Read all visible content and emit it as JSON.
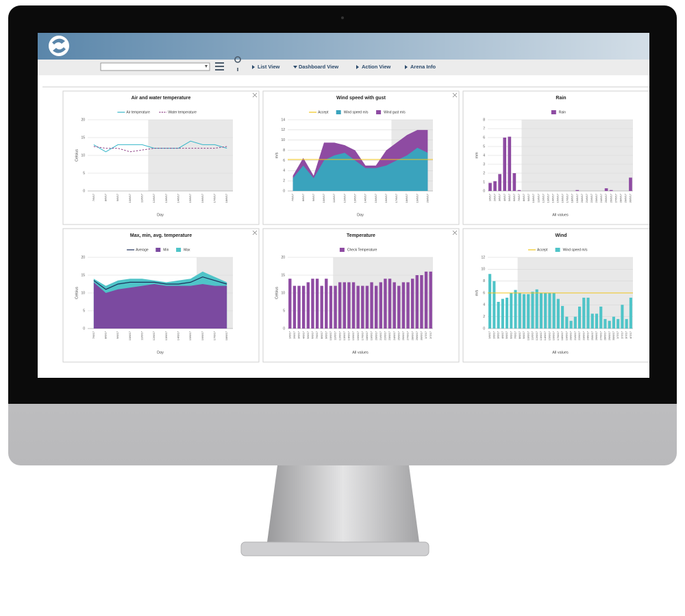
{
  "header": {
    "nav_links": [
      "List View",
      "Dashboard View",
      "Action View",
      "Arena Info"
    ]
  },
  "chart_data": [
    {
      "type": "line",
      "title": "Air and water temperature",
      "y_label": "Celsius",
      "x_label": "Day",
      "categories": [
        "7/6/17",
        "8/6/17",
        "9/6/17",
        "10/6/17",
        "11/6/17",
        "12/6/17",
        "13/6/17",
        "14/6/17",
        "15/6/17",
        "16/6/17",
        "17/6/17",
        "18/6/17"
      ],
      "series": [
        {
          "name": "Air temperature",
          "color": "#35b6c9",
          "values": [
            13,
            11,
            13,
            13,
            13,
            12,
            12,
            12,
            14,
            13,
            13,
            12
          ]
        },
        {
          "name": "Water temperature",
          "color": "#8a3b83",
          "dash": true,
          "values": [
            12.5,
            12,
            12,
            11,
            11.5,
            12,
            12,
            12,
            12,
            12,
            12,
            12.5
          ]
        }
      ],
      "ylim": [
        0,
        20
      ],
      "yticks": [
        0,
        5,
        10,
        15,
        20
      ],
      "grid": true,
      "plot_band_start": "12/6/17"
    },
    {
      "type": "area",
      "title": "Wind speed with gust",
      "y_label": "m/s",
      "x_label": "Day",
      "categories": [
        "7/6/17",
        "8/6/17",
        "9/6/17",
        "10/6/17",
        "11/6/17",
        "12/6/17",
        "13/6/17",
        "14/6/17",
        "15/6/17",
        "16/6/17",
        "17/6/17",
        "18/6/17",
        "19/6/17",
        "20/6/17"
      ],
      "reference_line": {
        "name": "Accept",
        "color": "#f0c419",
        "value": 6.2
      },
      "series": [
        {
          "name": "Wind speed m/s",
          "color": "#3aa3bd",
          "values": [
            2.5,
            5,
            2.5,
            6,
            7,
            7.5,
            6,
            4.5,
            4.5,
            5,
            6,
            7,
            8.5,
            7.5
          ]
        },
        {
          "name": "Wind gust m/s",
          "color": "#8e4ba2",
          "values": [
            3,
            6.5,
            3,
            9.5,
            9.5,
            9,
            8,
            5,
            5,
            8,
            9.5,
            11,
            12,
            12
          ]
        }
      ],
      "ylim": [
        0,
        14
      ],
      "yticks": [
        0,
        2,
        4,
        6,
        8,
        10,
        12,
        14
      ],
      "grid": true,
      "plot_band_start": "17/6/17"
    },
    {
      "type": "bar",
      "title": "Rain",
      "y_label": "mm",
      "x_label": "All values",
      "categories": [
        "1/6/17",
        "2/6/17",
        "3/6/17",
        "4/6/17",
        "5/6/17",
        "6/6/17",
        "7/6/17",
        "8/6/17",
        "9/6/17",
        "10/6/17",
        "11/6/17",
        "12/6/17",
        "13/6/17",
        "14/6/17",
        "15/6/17",
        "16/6/17",
        "17/6/17",
        "18/6/17",
        "19/6/17",
        "20/6/17",
        "21/6/17",
        "22/6/17",
        "23/6/17",
        "24/6/17",
        "25/6/17",
        "26/6/17",
        "27/6/17",
        "28/6/17",
        "29/6/17",
        "30/6/17"
      ],
      "series": [
        {
          "name": "Rain",
          "color": "#8e4ba2",
          "values": [
            0.9,
            1.1,
            1.9,
            6.0,
            6.1,
            2.0,
            0.1,
            0,
            0,
            0,
            0,
            0,
            0,
            0,
            0,
            0,
            0,
            0,
            0.1,
            0,
            0,
            0,
            0,
            0,
            0.3,
            0.1,
            0,
            0,
            0,
            1.5
          ]
        }
      ],
      "ylim": [
        0,
        8
      ],
      "yticks": [
        0,
        1,
        2,
        3,
        4,
        5,
        6,
        7,
        8
      ],
      "grid": true,
      "plot_band_start": "8/6/17"
    },
    {
      "type": "area",
      "title": "Max, min, avg. temperature",
      "y_label": "Celsius",
      "x_label": "Day",
      "categories": [
        "7/6/17",
        "8/6/17",
        "9/6/17",
        "10/6/17",
        "11/6/17",
        "12/6/17",
        "13/6/17",
        "14/6/17",
        "15/6/17",
        "16/6/17",
        "17/6/17",
        "18/6/17"
      ],
      "series": [
        {
          "name": "Average",
          "color": "#1d2f5a",
          "style": "line",
          "values": [
            13.5,
            11,
            12.5,
            13,
            13,
            13,
            12.5,
            12.5,
            13,
            14.5,
            13.5,
            12.5
          ]
        },
        {
          "name": "Min",
          "color": "#7b4aa0",
          "values": [
            13,
            10,
            11,
            11.5,
            12,
            12.5,
            12,
            12,
            12,
            12.5,
            12,
            12
          ]
        },
        {
          "name": "Max",
          "color": "#4fc4c8",
          "values": [
            14,
            12,
            13.5,
            14,
            14,
            13.5,
            13,
            13.5,
            14,
            16,
            14.5,
            13
          ]
        }
      ],
      "ylim": [
        0,
        20
      ],
      "yticks": [
        0,
        5,
        10,
        15,
        20
      ],
      "grid": true,
      "plot_band_start": "16/6/17"
    },
    {
      "type": "bar",
      "title": "Temperature",
      "y_label": "Celsius",
      "x_label": "All values",
      "categories": [
        "1/6/17",
        "2/6/17",
        "3/6/17",
        "4/6/17",
        "5/6/17",
        "6/6/17",
        "7/6/17",
        "8/6/17",
        "9/6/17",
        "10/6/17",
        "11/6/17",
        "12/6/17",
        "13/6/17",
        "14/6/17",
        "15/6/17",
        "16/6/17",
        "17/6/17",
        "18/6/17",
        "19/6/17",
        "20/6/17",
        "21/6/17",
        "22/6/17",
        "23/6/17",
        "24/6/17",
        "25/6/17",
        "26/6/17",
        "27/6/17",
        "28/6/17",
        "29/6/17",
        "30/6/17",
        "1/7/17",
        "2/7/17"
      ],
      "series": [
        {
          "name": "Check Temperature",
          "color": "#8e4ba2",
          "values": [
            14,
            12,
            12,
            12,
            13,
            14,
            14,
            12,
            14,
            12,
            12,
            13,
            13,
            13,
            13,
            12,
            12,
            12,
            13,
            12,
            13,
            14,
            14,
            13,
            12,
            13,
            13,
            14,
            15,
            15,
            16,
            16
          ]
        }
      ],
      "ylim": [
        0,
        20
      ],
      "yticks": [
        0,
        5,
        10,
        15,
        20
      ],
      "grid": true,
      "plot_band_start": "11/6/17"
    },
    {
      "type": "bar",
      "title": "Wind",
      "y_label": "m/s",
      "x_label": "All values",
      "categories": [
        "1/6/17",
        "2/6/17",
        "3/6/17",
        "4/6/17",
        "5/6/17",
        "6/6/17",
        "7/6/17",
        "8/6/17",
        "9/6/17",
        "10/6/17",
        "11/6/17",
        "12/6/17",
        "13/6/17",
        "14/6/17",
        "15/6/17",
        "16/6/17",
        "17/6/17",
        "18/6/17",
        "19/6/17",
        "20/6/17",
        "21/6/17",
        "22/6/17",
        "23/6/17",
        "24/6/17",
        "25/6/17",
        "26/6/17",
        "27/6/17",
        "28/6/17",
        "29/6/17",
        "30/6/17",
        "1/7/17",
        "2/7/17",
        "3/7/17",
        "4/7/17"
      ],
      "reference_line": {
        "name": "Accept",
        "color": "#f0c419",
        "value": 6
      },
      "series": [
        {
          "name": "Wind speed m/s",
          "color": "#4fc4c8",
          "values": [
            9.2,
            8,
            4.5,
            5,
            5.2,
            6,
            6.5,
            6,
            5.8,
            5.8,
            6.2,
            6.6,
            6,
            6,
            6,
            6,
            5,
            3.8,
            2,
            1.3,
            2,
            3.7,
            5.2,
            5.2,
            2.5,
            2.5,
            3.7,
            1.6,
            1.3,
            2,
            1.6,
            4,
            1.6,
            5.2
          ]
        }
      ],
      "ylim": [
        0,
        12
      ],
      "yticks": [
        0,
        2,
        4,
        6,
        8,
        10,
        12
      ],
      "grid": true,
      "plot_band_start": "8/6/17"
    }
  ]
}
